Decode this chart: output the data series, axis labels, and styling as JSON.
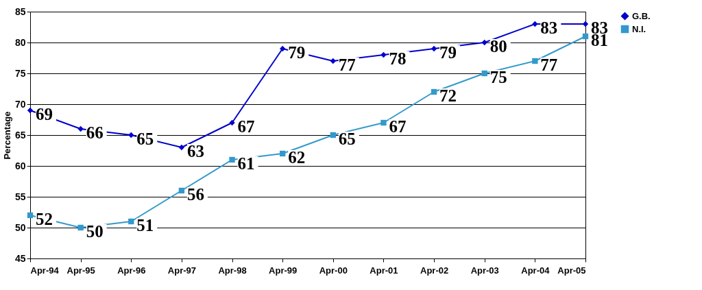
{
  "chart_data": {
    "type": "line",
    "ylabel": "Percentage",
    "categories": [
      "Apr-94",
      "Apr-95",
      "Apr-96",
      "Apr-97",
      "Apr-98",
      "Apr-99",
      "Apr-00",
      "Apr-01",
      "Apr-02",
      "Apr-03",
      "Apr-04",
      "Apr-05"
    ],
    "series": [
      {
        "name": "G.B.",
        "color": "#0000cc",
        "marker": "diamond",
        "values": [
          69,
          66,
          65,
          63,
          67,
          79,
          77,
          78,
          79,
          80,
          83,
          83
        ]
      },
      {
        "name": "N.I.",
        "color": "#3399cc",
        "marker": "square",
        "values": [
          52,
          50,
          51,
          56,
          61,
          62,
          65,
          67,
          72,
          75,
          77,
          81
        ]
      }
    ],
    "ylim": [
      45,
      85
    ],
    "yticks": [
      45,
      50,
      55,
      60,
      65,
      70,
      75,
      80,
      85
    ],
    "grid": "y",
    "legend": "right",
    "data_labels": true
  }
}
